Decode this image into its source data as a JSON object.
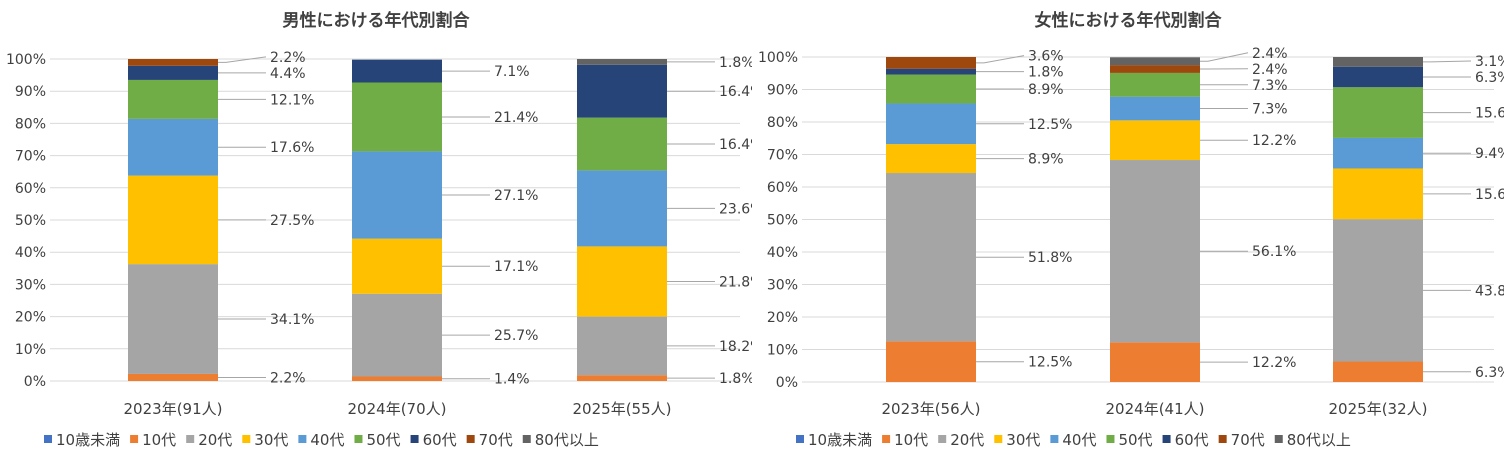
{
  "chart_data": [
    {
      "type": "bar",
      "stacked": true,
      "title": "男性における年代別割合",
      "categories": [
        "2023年(91人)",
        "2024年(70人)",
        "2025年(55人)"
      ],
      "ylim": [
        0,
        100
      ],
      "yticks": [
        "0%",
        "10%",
        "20%",
        "30%",
        "40%",
        "50%",
        "60%",
        "70%",
        "80%",
        "90%",
        "100%"
      ],
      "grid": true,
      "legend_position": "bottom",
      "series": [
        {
          "name": "10歳未満",
          "color": "#4472C4",
          "values": [
            0,
            0,
            0
          ]
        },
        {
          "name": "10代",
          "color": "#ED7D31",
          "values": [
            2.2,
            1.4,
            1.8
          ]
        },
        {
          "name": "20代",
          "color": "#A5A5A5",
          "values": [
            34.1,
            25.7,
            18.2
          ]
        },
        {
          "name": "30代",
          "color": "#FFC000",
          "values": [
            27.5,
            17.1,
            21.8
          ]
        },
        {
          "name": "40代",
          "color": "#5B9BD5",
          "values": [
            17.6,
            27.1,
            23.6
          ]
        },
        {
          "name": "50代",
          "color": "#70AD47",
          "values": [
            12.1,
            21.4,
            16.4
          ]
        },
        {
          "name": "60代",
          "color": "#264478",
          "values": [
            4.4,
            7.1,
            16.4
          ]
        },
        {
          "name": "70代",
          "color": "#9E480E",
          "values": [
            2.2,
            0,
            0
          ]
        },
        {
          "name": "80代以上",
          "color": "#636363",
          "values": [
            0,
            0,
            1.8
          ]
        }
      ]
    },
    {
      "type": "bar",
      "stacked": true,
      "title": "女性における年代別割合",
      "categories": [
        "2023年(56人)",
        "2024年(41人)",
        "2025年(32人)"
      ],
      "ylim": [
        0,
        100
      ],
      "yticks": [
        "0%",
        "10%",
        "20%",
        "30%",
        "40%",
        "50%",
        "60%",
        "70%",
        "80%",
        "90%",
        "100%"
      ],
      "grid": true,
      "legend_position": "bottom",
      "series": [
        {
          "name": "10歳未満",
          "color": "#4472C4",
          "values": [
            0,
            0,
            0
          ]
        },
        {
          "name": "10代",
          "color": "#ED7D31",
          "values": [
            12.5,
            12.2,
            6.3
          ]
        },
        {
          "name": "20代",
          "color": "#A5A5A5",
          "values": [
            51.8,
            56.1,
            43.8
          ]
        },
        {
          "name": "30代",
          "color": "#FFC000",
          "values": [
            8.9,
            12.2,
            15.6
          ]
        },
        {
          "name": "40代",
          "color": "#5B9BD5",
          "values": [
            12.5,
            7.3,
            9.4
          ]
        },
        {
          "name": "50代",
          "color": "#70AD47",
          "values": [
            8.9,
            7.3,
            15.6
          ]
        },
        {
          "name": "60代",
          "color": "#264478",
          "values": [
            1.8,
            0,
            6.3
          ]
        },
        {
          "name": "70代",
          "color": "#9E480E",
          "values": [
            3.6,
            2.4,
            0
          ]
        },
        {
          "name": "80代以上",
          "color": "#636363",
          "values": [
            0,
            2.4,
            3.1
          ]
        }
      ]
    }
  ]
}
